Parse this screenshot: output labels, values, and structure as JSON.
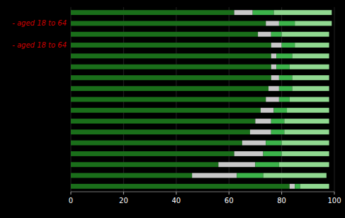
{
  "chart_data": {
    "type": "bar",
    "orientation": "horizontal",
    "stacked": true,
    "grid": true,
    "tick_labels": "x",
    "categories": [
      null,
      null,
      null,
      null,
      null,
      null,
      null,
      null,
      null,
      null,
      null,
      null,
      null,
      null,
      null,
      null,
      null
    ],
    "series": [
      {
        "color": "#1a6e1a",
        "values": [
          62,
          74,
          71,
          76,
          76,
          76,
          76,
          75,
          74,
          72,
          70,
          68,
          65,
          62,
          56,
          46,
          83
        ]
      },
      {
        "color": "#c8c8c8",
        "values": [
          7,
          5,
          5,
          4,
          2,
          2,
          3,
          4,
          5,
          5,
          6,
          8,
          9,
          11,
          14,
          17,
          2
        ]
      },
      {
        "color": "#3cb34a",
        "values": [
          8,
          6,
          4,
          5,
          6,
          5,
          5,
          5,
          4,
          5,
          5,
          5,
          6,
          7,
          9,
          10,
          2
        ]
      },
      {
        "color": "#90d890",
        "values": [
          22,
          14,
          18,
          13,
          14,
          15,
          14,
          14,
          15,
          16,
          17,
          17,
          18,
          18,
          19,
          24,
          11
        ]
      }
    ],
    "annotations": [
      {
        "text": "- aged 18 to 64",
        "row": 1,
        "color": "#cc0000"
      },
      {
        "text": "- aged 18 to 64",
        "row": 3,
        "color": "#cc0000"
      }
    ],
    "xlim": [
      0,
      100
    ],
    "xticks": [
      0,
      20,
      40,
      60,
      80,
      100
    ]
  }
}
